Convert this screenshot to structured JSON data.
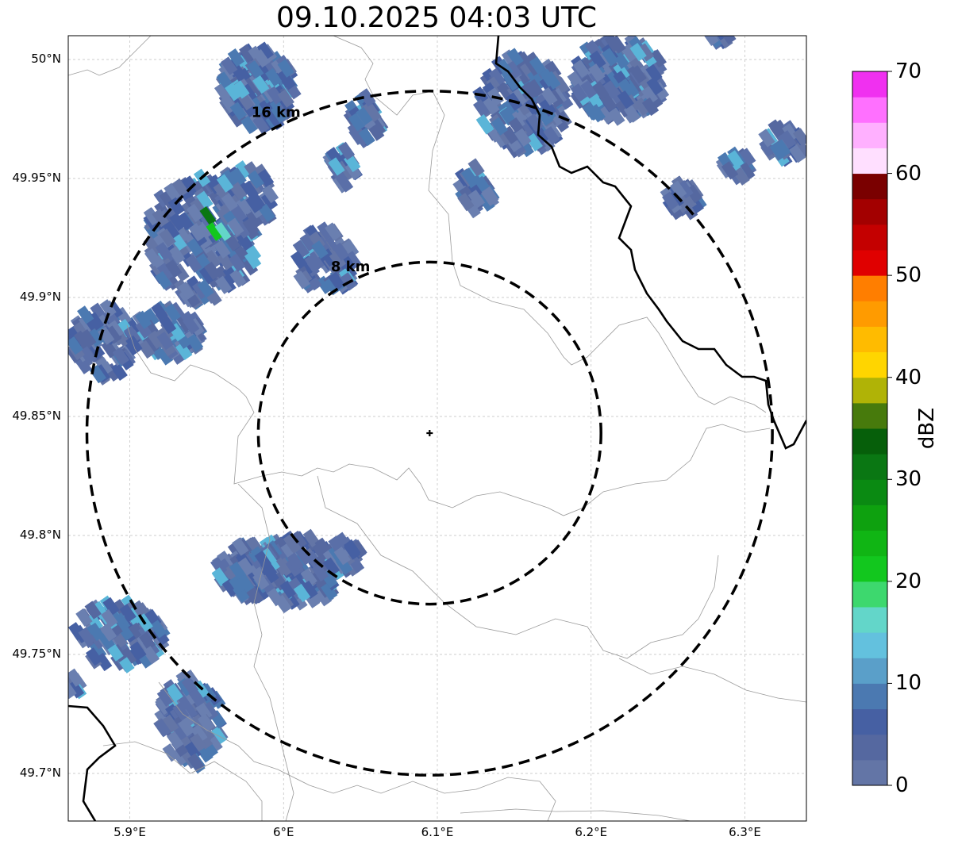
{
  "title": "09.10.2025 04:03 UTC",
  "map": {
    "lon_range": [
      5.86,
      6.34
    ],
    "lat_range": [
      49.68,
      50.01
    ],
    "lat_ticks": [
      {
        "value": 50.0,
        "label": "50°N"
      },
      {
        "value": 49.95,
        "label": "49.95°N"
      },
      {
        "value": 49.9,
        "label": "49.9°N"
      },
      {
        "value": 49.85,
        "label": "49.85°N"
      },
      {
        "value": 49.8,
        "label": "49.8°N"
      },
      {
        "value": 49.75,
        "label": "49.75°N"
      },
      {
        "value": 49.7,
        "label": "49.7°N"
      }
    ],
    "lon_ticks": [
      {
        "value": 5.9,
        "label": "5.9°E"
      },
      {
        "value": 6.0,
        "label": "6°E"
      },
      {
        "value": 6.1,
        "label": "6.1°E"
      },
      {
        "value": 6.2,
        "label": "6.2°E"
      },
      {
        "value": 6.3,
        "label": "6.3°E"
      }
    ],
    "gridlines": true,
    "radar_site": {
      "lon": 6.095,
      "lat": 49.843,
      "marker": "plus-icon"
    },
    "range_rings": [
      {
        "radius_km": 8,
        "label": "8 km"
      },
      {
        "radius_km": 16,
        "label": "16 km"
      }
    ]
  },
  "colorbar": {
    "unit": "dBZ",
    "min": 0,
    "max": 70,
    "tick_labels": [
      "0",
      "10",
      "20",
      "30",
      "40",
      "50",
      "60",
      "70"
    ],
    "tick_values": [
      0,
      10,
      20,
      30,
      40,
      50,
      60,
      70
    ],
    "colors": [
      "#6375a6",
      "#5568a0",
      "#4660a3",
      "#4b79b1",
      "#5a9fc9",
      "#63c1de",
      "#63d6c9",
      "#3dd86e",
      "#12c71e",
      "#10b514",
      "#0ea10f",
      "#0a8a12",
      "#0a7713",
      "#065f0a",
      "#477a0c",
      "#b0b306",
      "#ffd500",
      "#ffbb00",
      "#ff9b00",
      "#ff7e00",
      "#e00000",
      "#c40000",
      "#a30000",
      "#7a0000",
      "#ffdfff",
      "#ffb0ff",
      "#ff70ff",
      "#f030f0"
    ]
  }
}
